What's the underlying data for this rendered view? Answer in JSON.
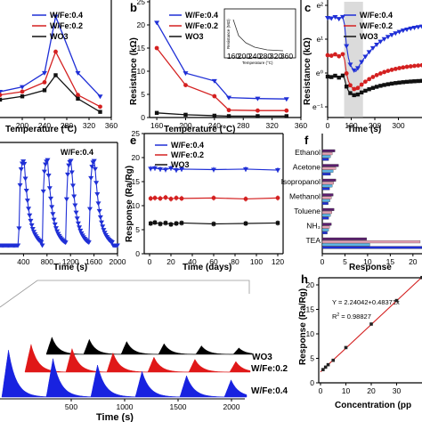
{
  "colors": {
    "wfe04": "#1f2fd6",
    "wfe02": "#d42020",
    "wo3": "#111111",
    "green": "#2e8b3a",
    "purple": "#5a1e6e",
    "lightblue": "#5ab4e6",
    "pink": "#e6a0b4"
  },
  "chart_data": [
    {
      "panel": "a",
      "type": "line",
      "xlabel": "Temperature (ºC)",
      "ylabel": "",
      "xlim": [
        160,
        360
      ],
      "xticks": [
        "200",
        "240",
        "280",
        "320",
        "360"
      ],
      "x": [
        160,
        200,
        240,
        260,
        300,
        340
      ],
      "series": [
        {
          "name": "W/Fe:0.4",
          "values": [
            10.5,
            11.5,
            14.5,
            26.5,
            14.5,
            9.5
          ]
        },
        {
          "name": "W/Fe:0.2",
          "values": [
            9.8,
            10.5,
            12.5,
            19.0,
            9.8,
            7.3
          ]
        },
        {
          "name": "WO3",
          "values": [
            8.8,
            9.5,
            10.8,
            14.0,
            9.0,
            6.2
          ]
        }
      ],
      "ylim": [
        5,
        30
      ]
    },
    {
      "panel": "b",
      "type": "line",
      "xlabel": "Temperature (°C)",
      "ylabel": "Resistance (kΩ)",
      "xlim": [
        150,
        360
      ],
      "ylim": [
        0,
        25
      ],
      "xticks": [
        "160",
        "200",
        "240",
        "280",
        "320",
        "360"
      ],
      "yticks": [
        "0",
        "5",
        "10",
        "15",
        "20",
        "25"
      ],
      "x": [
        160,
        200,
        240,
        260,
        300,
        340
      ],
      "series": [
        {
          "name": "W/Fe:0.4",
          "values": [
            20.5,
            9.6,
            7.9,
            4.3,
            4.1,
            4.0
          ]
        },
        {
          "name": "W/Fe:0.2",
          "values": [
            15.0,
            7.0,
            4.6,
            1.6,
            1.5,
            1.5
          ]
        },
        {
          "name": "WO3",
          "values": [
            1.0,
            0.6,
            0.4,
            0.3,
            0.3,
            0.3
          ]
        }
      ],
      "inset": {
        "ylabel": "Resistance (MΩ)",
        "xlabel": "Temperature (°C)",
        "xticks": [
          "160",
          "200",
          "240",
          "280",
          "320",
          "360"
        ]
      }
    },
    {
      "panel": "c",
      "type": "line",
      "xlabel": "Time (s)",
      "ylabel": "Resistance (kΩ)",
      "xlim": [
        0,
        400
      ],
      "xticks": [
        "0",
        "100",
        "200",
        "300"
      ],
      "yticks": [
        "e⁻¹",
        "e⁰",
        "e¹",
        "e²"
      ],
      "series": [
        {
          "name": "W/Fe:0.4"
        },
        {
          "name": "W/Fe:0.2"
        },
        {
          "name": "WO3"
        }
      ]
    },
    {
      "panel": "d",
      "type": "line",
      "xlabel": "Time (s)",
      "xlim": [
        0,
        2000
      ],
      "xticks": [
        "400",
        "800",
        "1200",
        "1600",
        "2000"
      ],
      "series": [
        {
          "name": "W/Fe:0.4"
        }
      ],
      "pulse_starts": [
        320,
        720,
        1120,
        1520
      ],
      "pulse_peak": 22
    },
    {
      "panel": "e",
      "type": "line",
      "xlabel": "Time (days)",
      "ylabel": "Response (Ra/Rg)",
      "xlim": [
        -5,
        125
      ],
      "ylim": [
        0,
        25
      ],
      "xticks": [
        "0",
        "20",
        "40",
        "60",
        "80",
        "100",
        "120"
      ],
      "yticks": [
        "0",
        "5",
        "10",
        "15",
        "20",
        "25"
      ],
      "x": [
        1,
        5,
        10,
        15,
        20,
        25,
        30,
        60,
        90,
        120
      ],
      "series": [
        {
          "name": "W/Fe:0.4",
          "values": [
            17.7,
            17.8,
            17.6,
            17.5,
            17.8,
            17.4,
            17.6,
            17.5,
            17.6,
            17.4
          ]
        },
        {
          "name": "W/Fe:0.2",
          "values": [
            11.5,
            11.6,
            11.5,
            11.7,
            11.4,
            11.6,
            11.5,
            11.6,
            11.4,
            11.6
          ]
        },
        {
          "name": "WO3",
          "values": [
            6.3,
            6.5,
            6.2,
            6.4,
            6.1,
            6.3,
            6.4,
            6.2,
            6.3,
            6.4
          ]
        }
      ]
    },
    {
      "panel": "f",
      "type": "bar",
      "xlabel": "Response",
      "xlim": [
        0,
        22
      ],
      "xticks": [
        "0",
        "5",
        "10",
        "15",
        "20"
      ],
      "categories": [
        "Ethanol",
        "Acetone",
        "Isopropanol",
        "Methanol",
        "Toluene",
        "NH3",
        "TEA"
      ],
      "category_labels": [
        "Ethanol",
        "Acetone",
        "Isopropanol",
        "Methanol",
        "Toluene",
        "NH₃",
        "TEA"
      ],
      "series": [
        {
          "values": [
            2.8,
            3.6,
            3.0,
            2.4,
            2.6,
            2.0,
            9.8
          ]
        },
        {
          "values": [
            2.2,
            3.0,
            2.5,
            2.0,
            2.1,
            1.6,
            21.6
          ]
        },
        {
          "values": [
            1.8,
            2.4,
            2.2,
            1.7,
            1.8,
            1.4,
            10.5
          ]
        },
        {
          "values": [
            1.4,
            1.8,
            1.6,
            1.3,
            1.4,
            1.1,
            22.0
          ]
        }
      ]
    },
    {
      "panel": "g",
      "type": "area",
      "xlabel": "Time (s)",
      "xticks": [
        "500",
        "1000",
        "1500",
        "2000"
      ],
      "series": [
        {
          "name": "WO3"
        },
        {
          "name": "W/Fe:0.2"
        },
        {
          "name": "W/Fe:0.4"
        }
      ],
      "pulse_starts": [
        0,
        400,
        800,
        1200,
        1600,
        2000
      ],
      "peaks": {
        "WO3": [
          8,
          7,
          6,
          5,
          4,
          3
        ],
        "W/Fe:0.2": [
          13,
          11,
          9,
          7,
          6,
          5
        ],
        "W/Fe:0.4": [
          22,
          18,
          15,
          12,
          10,
          8
        ]
      }
    },
    {
      "panel": "h",
      "type": "scatter",
      "xlabel": "Concentration (pp",
      "ylabel": "Response (Ra/Rg)",
      "xlim": [
        0,
        40
      ],
      "ylim": [
        0,
        20
      ],
      "xticks": [
        "0",
        "10",
        "20",
        "30"
      ],
      "yticks": [
        "0",
        "5",
        "10",
        "15",
        "20"
      ],
      "equation": "Y = 2.24042+0.48371x",
      "r2_label": "R",
      "r2_sup": "2",
      "r2_value": " = 0.98827",
      "x": [
        1,
        2,
        3,
        5,
        10,
        20,
        30,
        40
      ],
      "values": [
        2.7,
        3.2,
        3.7,
        4.6,
        7.2,
        12.0,
        16.8,
        21.5
      ],
      "fit": {
        "intercept": 2.24042,
        "slope": 0.48371
      }
    }
  ]
}
